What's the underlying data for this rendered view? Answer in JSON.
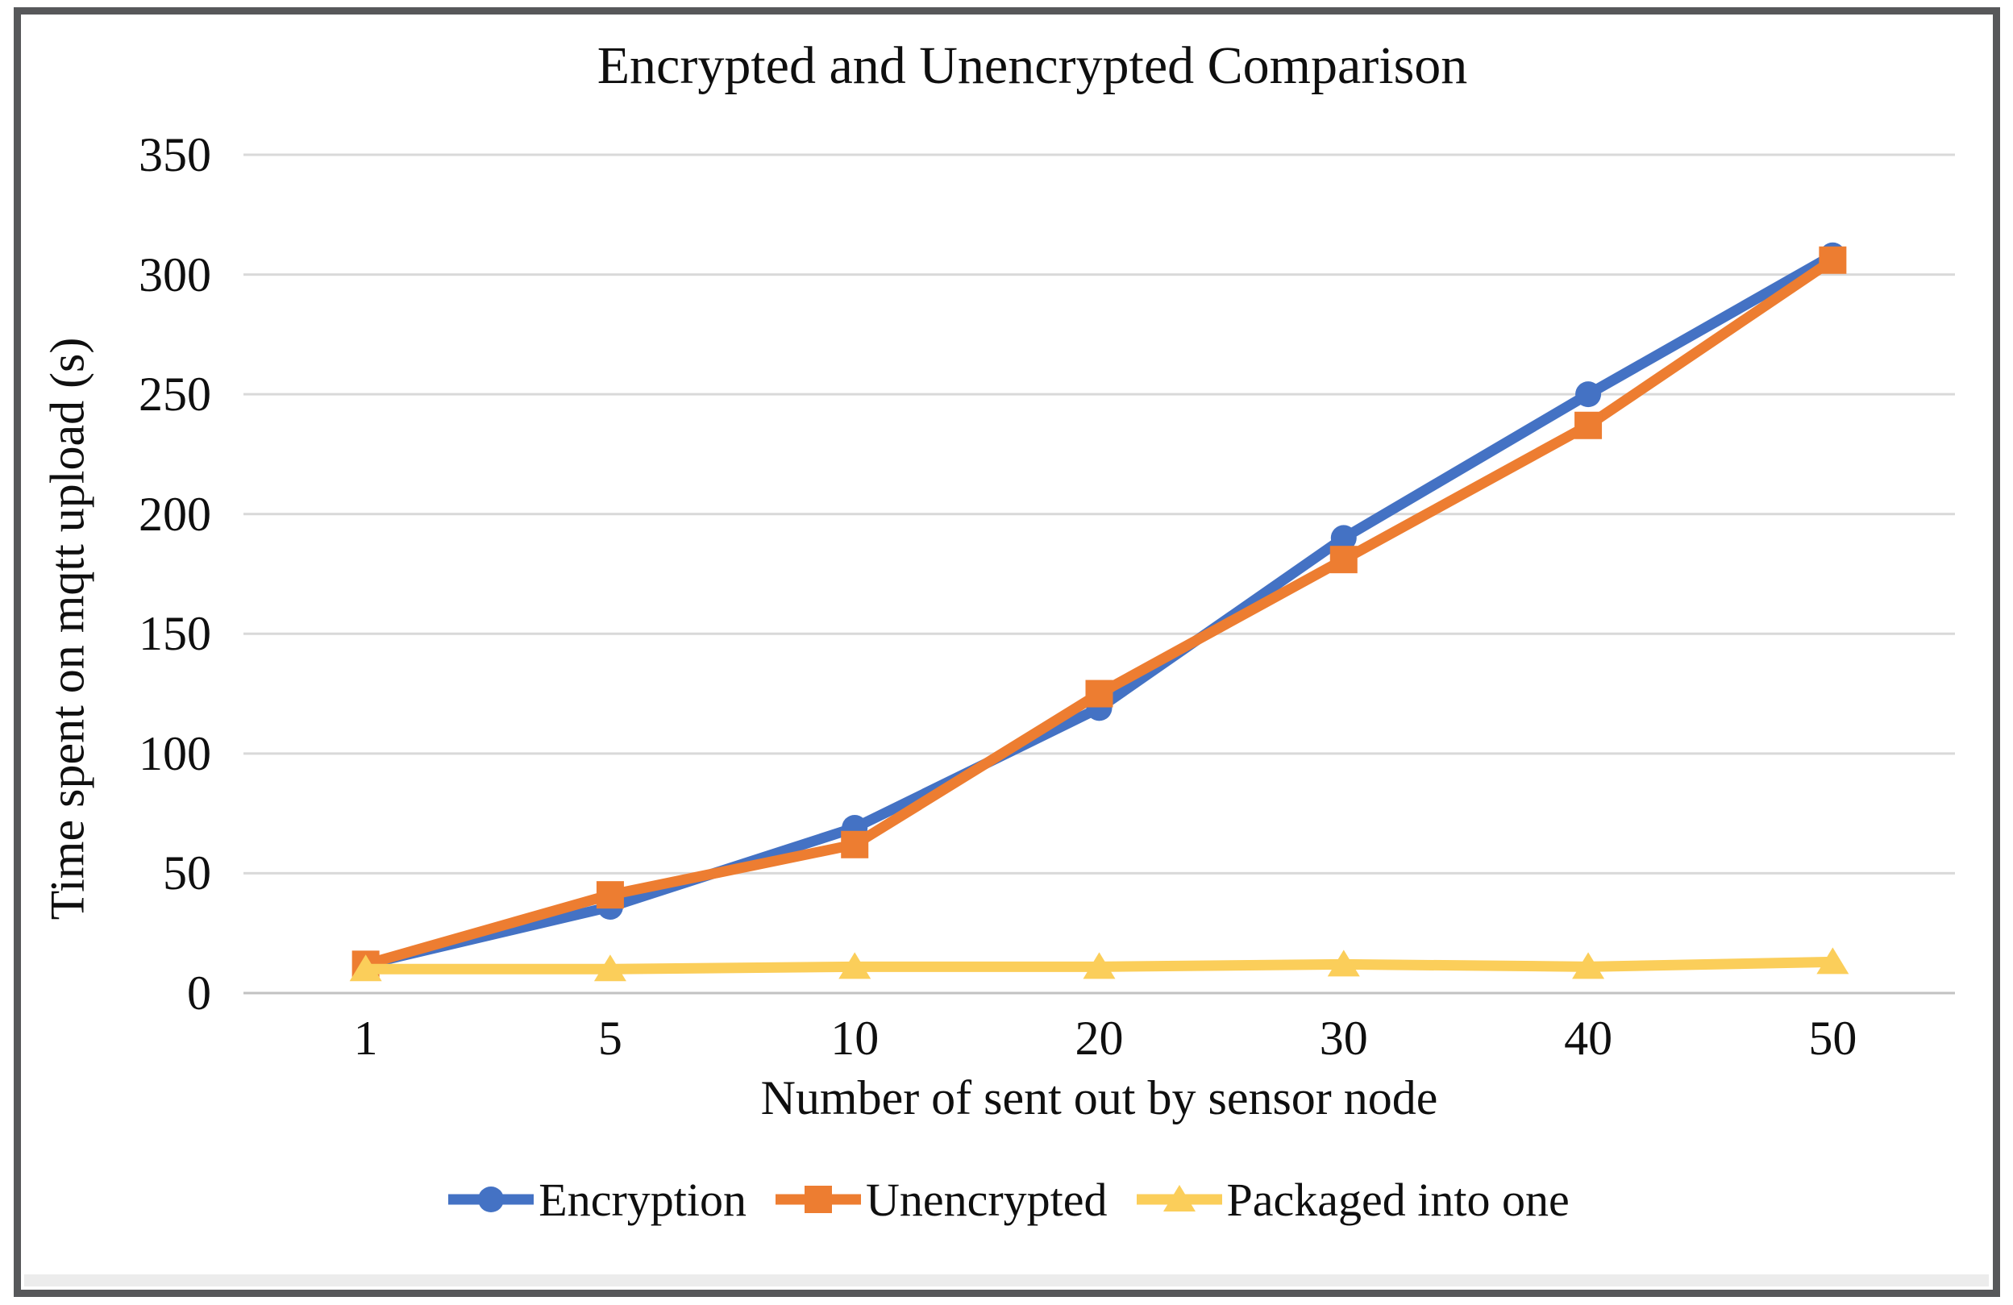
{
  "figure": {
    "title": "Encrypted and Unencrypted Comparison",
    "x_axis_title": "Number of sent out by sensor node",
    "y_axis_title": "Time spent on mqtt upload (s)"
  },
  "colors": {
    "encryption_blue": "#4472C4",
    "unencrypted_orange": "#ED7D31",
    "packaged_yellow": "#FBCE5A",
    "gridline": "#D9D9D9",
    "axis_line": "#C2C2C2",
    "frame_border": "#57585A",
    "text": "#0f0f0f"
  },
  "chart_data": {
    "type": "line",
    "title": "Encrypted and Unencrypted Comparison",
    "xlabel": "Number of sent out by sensor node",
    "ylabel": "Time spent on mqtt upload (s)",
    "categories": [
      "1",
      "5",
      "10",
      "20",
      "30",
      "40",
      "50"
    ],
    "yticks": [
      0,
      50,
      100,
      150,
      200,
      250,
      300,
      350
    ],
    "ylim": [
      0,
      350
    ],
    "grid": "horizontal-only",
    "legend_position": "bottom",
    "series": [
      {
        "name": "Encryption",
        "marker": "circle",
        "color": "#4472C4",
        "values": [
          12,
          36,
          69,
          119,
          190,
          250,
          308
        ]
      },
      {
        "name": "Unencrypted",
        "marker": "square",
        "color": "#ED7D31",
        "values": [
          12,
          41,
          62,
          125,
          181,
          237,
          306
        ]
      },
      {
        "name": "Packaged into one",
        "marker": "triangle",
        "color": "#FBCE5A",
        "values": [
          10,
          10,
          11,
          11,
          12,
          11,
          13
        ]
      }
    ]
  }
}
